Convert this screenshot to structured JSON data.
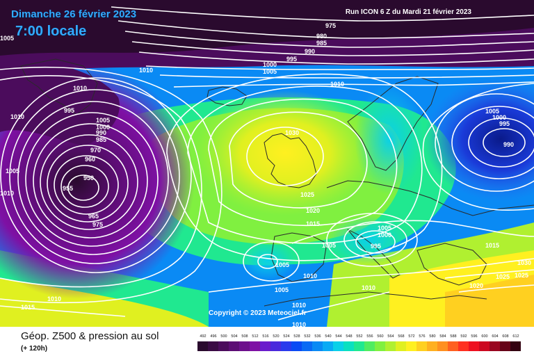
{
  "header": {
    "date_title": "Dimanche 26 février 2023",
    "time_title": "7:00 locale",
    "run_info": "Run ICON 6 Z du Mardi 21 février 2023"
  },
  "copyright": "Copyright © 2023 Meteociel.fr",
  "footer": {
    "title": "Géop. Z500 & pression au sol",
    "subtitle": "(+ 120h)"
  },
  "legend": {
    "ticks": [
      "492",
      "496",
      "500",
      "504",
      "508",
      "512",
      "516",
      "520",
      "524",
      "528",
      "532",
      "536",
      "540",
      "544",
      "548",
      "552",
      "556",
      "560",
      "564",
      "568",
      "572",
      "576",
      "580",
      "584",
      "588",
      "592",
      "596",
      "600",
      "604",
      "608",
      "612"
    ],
    "colors": [
      "#2a0a2e",
      "#3a0b44",
      "#4b0c5c",
      "#5c0d74",
      "#6d0f8c",
      "#7e10a4",
      "#6a1ccc",
      "#4a2adc",
      "#2a3aec",
      "#0a4af4",
      "#0a6af4",
      "#0a8af4",
      "#0aaaf4",
      "#0ad0e8",
      "#0ae0c0",
      "#20e890",
      "#50ec60",
      "#80f040",
      "#b0f030",
      "#e0f020",
      "#fff020",
      "#ffd020",
      "#ffb020",
      "#ff9020",
      "#ff6020",
      "#ff3020",
      "#ee1020",
      "#cc0820",
      "#990520",
      "#660318",
      "#330110"
    ]
  },
  "pressure_labels": [
    {
      "text": "975",
      "name": "isobar-label-975-top"
    },
    {
      "text": "980",
      "name": "isobar-label-980"
    },
    {
      "text": "985",
      "name": "isobar-label-985"
    },
    {
      "text": "990",
      "name": "isobar-label-990-north"
    },
    {
      "text": "995",
      "name": "isobar-label-995-north"
    },
    {
      "text": "1000",
      "name": "isobar-label-1000-north"
    },
    {
      "text": "1005",
      "name": "isobar-label-1005-north"
    },
    {
      "text": "1010",
      "name": "isobar-label-1010-north"
    },
    {
      "text": "1010",
      "name": "isobar-label-1010-greenland"
    },
    {
      "text": "995",
      "name": "isobar-label-995-greenland"
    },
    {
      "text": "1005",
      "name": "isobar-label-1005-low"
    },
    {
      "text": "1000",
      "name": "isobar-label-1000-low"
    },
    {
      "text": "990",
      "name": "isobar-label-990-low"
    },
    {
      "text": "985",
      "name": "isobar-label-985-low"
    },
    {
      "text": "970",
      "name": "isobar-label-970-low"
    },
    {
      "text": "960",
      "name": "isobar-label-960-low"
    },
    {
      "text": "950",
      "name": "isobar-label-950-center"
    },
    {
      "text": "955",
      "name": "isobar-label-955"
    },
    {
      "text": "965",
      "name": "isobar-label-965"
    },
    {
      "text": "975",
      "name": "isobar-label-975-low"
    },
    {
      "text": "1010",
      "name": "isobar-label-1010-west"
    },
    {
      "text": "1005",
      "name": "isobar-label-1005-west"
    },
    {
      "text": "1010",
      "name": "isobar-label-1010-west2"
    },
    {
      "text": "1030",
      "name": "isobar-label-1030-high"
    },
    {
      "text": "1025",
      "name": "isobar-label-1025"
    },
    {
      "text": "1020",
      "name": "isobar-label-1020"
    },
    {
      "text": "1015",
      "name": "isobar-label-1015"
    },
    {
      "text": "1010",
      "name": "isobar-label-1010-east"
    },
    {
      "text": "1005",
      "name": "isobar-label-1005-east"
    },
    {
      "text": "1000",
      "name": "isobar-label-1000-east"
    },
    {
      "text": "995",
      "name": "isobar-label-995-east"
    },
    {
      "text": "990",
      "name": "isobar-label-990-east"
    },
    {
      "text": "1005",
      "name": "isobar-label-1005-med"
    },
    {
      "text": "1000",
      "name": "isobar-label-1000-med"
    },
    {
      "text": "995",
      "name": "isobar-label-995-med"
    },
    {
      "text": "1005",
      "name": "isobar-label-1005-iberia"
    },
    {
      "text": "1005",
      "name": "isobar-label-1005-spain"
    },
    {
      "text": "1005",
      "name": "isobar-label-1005-azores"
    },
    {
      "text": "1010",
      "name": "isobar-label-1010-spain"
    },
    {
      "text": "1010",
      "name": "isobar-label-1010-italy"
    },
    {
      "text": "1010",
      "name": "isobar-label-1010-africa"
    },
    {
      "text": "1010",
      "name": "isobar-label-1010-africa2"
    },
    {
      "text": "1010",
      "name": "isobar-label-1010-southwest"
    },
    {
      "text": "1015",
      "name": "isobar-label-1015-southwest"
    },
    {
      "text": "1015",
      "name": "isobar-label-1015-east"
    },
    {
      "text": "1020",
      "name": "isobar-label-1020-east"
    },
    {
      "text": "1025",
      "name": "isobar-label-1025-east"
    },
    {
      "text": "1025",
      "name": "isobar-label-1025-east2"
    },
    {
      "text": "1030",
      "name": "isobar-label-1030-east"
    },
    {
      "text": "1005",
      "name": "isobar-label-1005-topleft"
    }
  ]
}
